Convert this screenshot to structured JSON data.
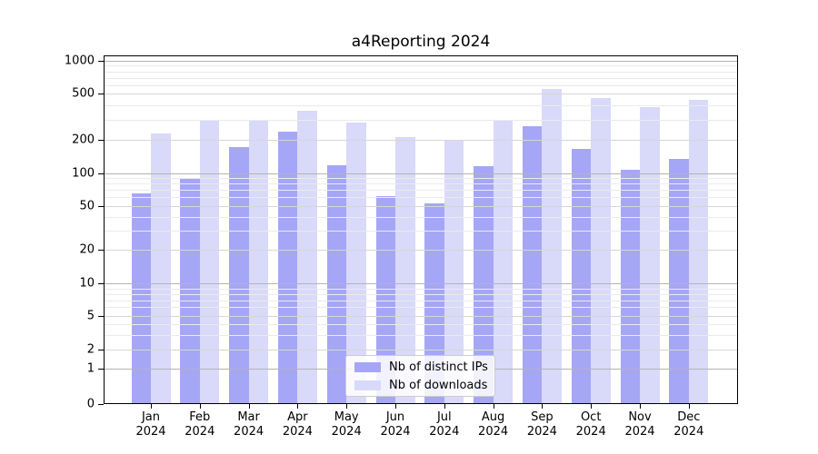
{
  "title": "a4Reporting 2024",
  "chart_data": {
    "type": "bar",
    "title": "a4Reporting 2024",
    "y_scale": "symlog",
    "grid": "both",
    "legend_position": "lower-center",
    "year": "2024",
    "months": [
      "Jan",
      "Feb",
      "Mar",
      "Apr",
      "May",
      "Jun",
      "Jul",
      "Aug",
      "Sep",
      "Oct",
      "Nov",
      "Dec"
    ],
    "categories": [
      "Jan 2024",
      "Feb 2024",
      "Mar 2024",
      "Apr 2024",
      "May 2024",
      "Jun 2024",
      "Jul 2024",
      "Aug 2024",
      "Sep 2024",
      "Oct 2024",
      "Nov 2024",
      "Dec 2024"
    ],
    "series": [
      {
        "name": "Nb of distinct IPs",
        "color": "#a6a6f6",
        "values": [
          65,
          90,
          170,
          235,
          118,
          62,
          53,
          116,
          260,
          165,
          107,
          135
        ]
      },
      {
        "name": "Nb of downloads",
        "color": "#d9d9f9",
        "values": [
          228,
          295,
          292,
          355,
          284,
          212,
          200,
          290,
          558,
          458,
          382,
          441
        ]
      }
    ],
    "yticks": [
      0,
      1,
      2,
      5,
      10,
      20,
      50,
      100,
      200,
      500,
      1000
    ],
    "ylim": [
      0,
      1100
    ]
  },
  "legend": {
    "items": [
      {
        "label": "Nb of distinct IPs",
        "color": "#a6a6f6"
      },
      {
        "label": "Nb of downloads",
        "color": "#d9d9f9"
      }
    ]
  },
  "colors": {
    "bar_ips": "#a6a6f6",
    "bar_downloads": "#d9d9f9",
    "grid_decade": "#b4b4b4",
    "grid_major": "#d6d6d6",
    "grid_minor": "#ebebeb",
    "axis": "#000000",
    "background": "#ffffff"
  }
}
